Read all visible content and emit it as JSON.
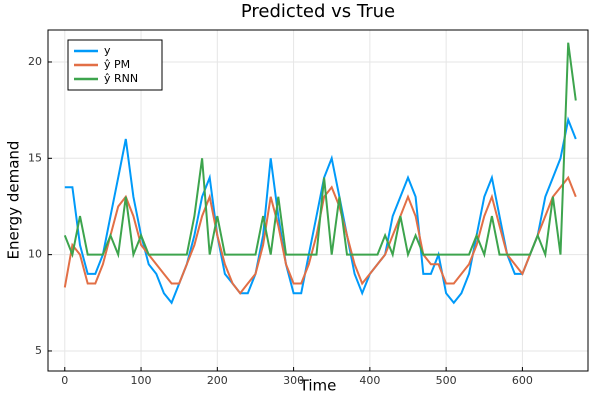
{
  "chart_data": {
    "type": "line",
    "title": "Predicted vs True",
    "x_label": "Time",
    "y_label": "Energy demand",
    "x": [
      0,
      10,
      20,
      30,
      40,
      50,
      60,
      70,
      80,
      90,
      100,
      110,
      120,
      130,
      140,
      150,
      160,
      170,
      180,
      190,
      200,
      210,
      220,
      230,
      240,
      250,
      260,
      270,
      280,
      290,
      300,
      310,
      320,
      330,
      340,
      350,
      360,
      370,
      380,
      390,
      400,
      410,
      420,
      430,
      440,
      450,
      460,
      470,
      480,
      490,
      500,
      510,
      520,
      530,
      540,
      550,
      560,
      570,
      580,
      590,
      600,
      610,
      620,
      630,
      640,
      650,
      660,
      670
    ],
    "series": [
      {
        "name": "y",
        "color": "#009af9",
        "values": [
          13.5,
          13.5,
          10.5,
          9,
          9,
          10,
          12,
          14,
          16,
          13,
          11,
          9.5,
          9,
          8,
          7.5,
          8.5,
          9.5,
          11,
          13,
          14,
          11,
          9,
          8.5,
          8,
          8,
          9,
          11,
          15,
          12,
          9.5,
          8,
          8,
          10,
          12,
          14,
          15,
          13,
          11,
          9,
          8,
          9,
          9.5,
          10,
          12,
          13,
          14,
          13,
          9,
          9,
          10,
          8,
          7.5,
          8,
          9,
          11,
          13,
          14,
          12,
          10,
          9,
          9,
          10,
          11,
          13,
          14,
          15,
          17,
          16
        ]
      },
      {
        "name": "ŷ PM",
        "color": "#e26f46",
        "values": [
          8.3,
          10.5,
          10,
          8.5,
          8.5,
          9.5,
          11,
          12.5,
          13,
          12,
          10.5,
          10,
          9.5,
          9,
          8.5,
          8.5,
          9.5,
          10.5,
          12,
          13,
          11,
          9.5,
          8.5,
          8,
          8.5,
          9,
          10.5,
          13,
          11.5,
          9.5,
          8.5,
          8.5,
          9.5,
          11,
          13,
          13.5,
          12.5,
          11,
          9.5,
          8.5,
          9,
          9.5,
          10,
          11,
          12,
          13,
          12,
          10,
          9.5,
          9.5,
          8.5,
          8.5,
          9,
          9.5,
          10.5,
          12,
          13,
          11.5,
          10,
          9.5,
          9,
          10,
          11,
          12,
          13,
          13.5,
          14,
          13
        ]
      },
      {
        "name": "ŷ RNN",
        "color": "#3da44d",
        "values": [
          11,
          10,
          12,
          10,
          10,
          10,
          11,
          10,
          13,
          10,
          11,
          10,
          10,
          10,
          10,
          10,
          10,
          12,
          15,
          10,
          12,
          10,
          10,
          10,
          10,
          10,
          12,
          10,
          13,
          10,
          10,
          10,
          10,
          10,
          14,
          10,
          13,
          10,
          10,
          10,
          10,
          10,
          11,
          10,
          12,
          10,
          11,
          10,
          10,
          10,
          10,
          10,
          10,
          10,
          11,
          10,
          12,
          10,
          10,
          10,
          10,
          10,
          11,
          10,
          13,
          10,
          21,
          18
        ]
      }
    ],
    "xlim": [
      -22,
      686
    ],
    "ylim": [
      3.96,
      21.66
    ],
    "xticks": [
      0,
      100,
      200,
      300,
      400,
      500,
      600
    ],
    "yticks": [
      5,
      10,
      15,
      20
    ],
    "grid": true,
    "legend": "upper-left"
  }
}
